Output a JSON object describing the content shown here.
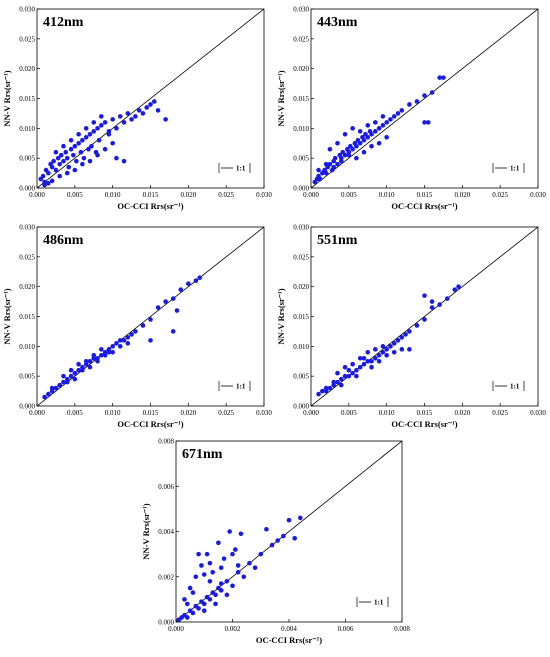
{
  "chart_data": [
    {
      "type": "scatter",
      "title": "412nm",
      "xlabel": "OC-CCI Rrs(sr⁻¹)",
      "ylabel": "NN-V Rrs(sr⁻¹)",
      "xlim": [
        0,
        0.03
      ],
      "ylim": [
        0,
        0.03
      ],
      "xticks": [
        "0.000",
        "0.005",
        "0.010",
        "0.015",
        "0.020",
        "0.025",
        "0.030"
      ],
      "yticks": [
        "0.000",
        "0.005",
        "0.010",
        "0.015",
        "0.020",
        "0.025",
        "0.030"
      ],
      "legend": "1:1",
      "marker_color": "#1a1ae6",
      "x": [
        0.0005,
        0.0008,
        0.001,
        0.0012,
        0.0015,
        0.0018,
        0.002,
        0.0022,
        0.0025,
        0.0028,
        0.003,
        0.0032,
        0.0035,
        0.0038,
        0.004,
        0.0042,
        0.0045,
        0.0048,
        0.005,
        0.0052,
        0.0055,
        0.0058,
        0.006,
        0.0062,
        0.0065,
        0.0068,
        0.007,
        0.0072,
        0.0075,
        0.0078,
        0.008,
        0.0082,
        0.0085,
        0.009,
        0.0095,
        0.01,
        0.0105,
        0.011,
        0.0115,
        0.012,
        0.0125,
        0.013,
        0.0135,
        0.014,
        0.0145,
        0.015,
        0.0155,
        0.016,
        0.017,
        0.001,
        0.0015,
        0.002,
        0.003,
        0.004,
        0.005,
        0.006,
        0.007,
        0.008,
        0.009,
        0.01,
        0.0025,
        0.0035,
        0.0045,
        0.0055,
        0.0065,
        0.0075,
        0.0085,
        0.0095,
        0.0105,
        0.0115
      ],
      "y": [
        0.0015,
        0.002,
        0.001,
        0.003,
        0.0025,
        0.004,
        0.0035,
        0.0045,
        0.003,
        0.005,
        0.004,
        0.0055,
        0.0045,
        0.006,
        0.005,
        0.0035,
        0.0065,
        0.0055,
        0.007,
        0.0045,
        0.0075,
        0.006,
        0.008,
        0.005,
        0.0085,
        0.0065,
        0.009,
        0.007,
        0.0095,
        0.006,
        0.01,
        0.008,
        0.0105,
        0.011,
        0.009,
        0.0115,
        0.01,
        0.012,
        0.011,
        0.0125,
        0.0115,
        0.012,
        0.013,
        0.0125,
        0.0135,
        0.014,
        0.0145,
        0.013,
        0.0115,
        0.0005,
        0.0008,
        0.0012,
        0.002,
        0.0025,
        0.003,
        0.004,
        0.0045,
        0.0055,
        0.0065,
        0.0075,
        0.006,
        0.007,
        0.008,
        0.009,
        0.01,
        0.011,
        0.012,
        0.0095,
        0.005,
        0.0045
      ]
    },
    {
      "type": "scatter",
      "title": "443nm",
      "xlabel": "OC-CCI Rrs(sr⁻¹)",
      "ylabel": "NN-V Rrs(sr⁻¹)",
      "xlim": [
        0,
        0.03
      ],
      "ylim": [
        0,
        0.03
      ],
      "xticks": [
        "0.000",
        "0.005",
        "0.010",
        "0.015",
        "0.020",
        "0.025",
        "0.030"
      ],
      "yticks": [
        "0.000",
        "0.005",
        "0.010",
        "0.015",
        "0.020",
        "0.025",
        "0.030"
      ],
      "legend": "1:1",
      "marker_color": "#1a1ae6",
      "x": [
        0.0005,
        0.0008,
        0.001,
        0.0012,
        0.0015,
        0.0018,
        0.002,
        0.0022,
        0.0025,
        0.0028,
        0.003,
        0.0032,
        0.0035,
        0.0038,
        0.004,
        0.0042,
        0.0045,
        0.0048,
        0.005,
        0.0052,
        0.0055,
        0.0058,
        0.006,
        0.0062,
        0.0065,
        0.0068,
        0.007,
        0.0072,
        0.0075,
        0.0078,
        0.008,
        0.0085,
        0.009,
        0.0095,
        0.01,
        0.0105,
        0.011,
        0.0115,
        0.012,
        0.013,
        0.014,
        0.015,
        0.016,
        0.017,
        0.0175,
        0.001,
        0.002,
        0.003,
        0.004,
        0.005,
        0.006,
        0.007,
        0.008,
        0.009,
        0.01,
        0.0025,
        0.0035,
        0.0045,
        0.0055,
        0.0065,
        0.0075,
        0.0085,
        0.0095,
        0.015,
        0.0155
      ],
      "y": [
        0.001,
        0.0015,
        0.002,
        0.0015,
        0.0025,
        0.003,
        0.0025,
        0.0035,
        0.004,
        0.003,
        0.0045,
        0.005,
        0.004,
        0.0055,
        0.005,
        0.006,
        0.0055,
        0.0065,
        0.006,
        0.007,
        0.0065,
        0.0075,
        0.007,
        0.008,
        0.0075,
        0.0085,
        0.008,
        0.009,
        0.0085,
        0.0095,
        0.009,
        0.0095,
        0.01,
        0.0105,
        0.011,
        0.0115,
        0.012,
        0.0125,
        0.013,
        0.014,
        0.0145,
        0.0155,
        0.016,
        0.0185,
        0.0185,
        0.003,
        0.004,
        0.0035,
        0.0045,
        0.0055,
        0.005,
        0.006,
        0.007,
        0.0075,
        0.0085,
        0.0065,
        0.0075,
        0.009,
        0.01,
        0.0095,
        0.0105,
        0.011,
        0.012,
        0.011,
        0.011
      ]
    },
    {
      "type": "scatter",
      "title": "486nm",
      "xlabel": "OC-CCI Rrs(sr⁻¹)",
      "ylabel": "NN-V Rrs(sr⁻¹)",
      "xlim": [
        0,
        0.03
      ],
      "ylim": [
        0,
        0.03
      ],
      "xticks": [
        "0.000",
        "0.005",
        "0.010",
        "0.015",
        "0.020",
        "0.025",
        "0.030"
      ],
      "yticks": [
        "0.000",
        "0.005",
        "0.010",
        "0.015",
        "0.020",
        "0.025",
        "0.030"
      ],
      "legend": "1:1",
      "marker_color": "#1a1ae6",
      "x": [
        0.001,
        0.0015,
        0.002,
        0.0025,
        0.003,
        0.0035,
        0.004,
        0.0045,
        0.005,
        0.0055,
        0.006,
        0.0065,
        0.007,
        0.0075,
        0.008,
        0.0085,
        0.009,
        0.0095,
        0.01,
        0.0105,
        0.011,
        0.0115,
        0.012,
        0.0125,
        0.013,
        0.014,
        0.015,
        0.016,
        0.017,
        0.018,
        0.019,
        0.02,
        0.021,
        0.0215,
        0.002,
        0.003,
        0.004,
        0.005,
        0.006,
        0.007,
        0.008,
        0.009,
        0.01,
        0.011,
        0.012,
        0.0035,
        0.0045,
        0.0055,
        0.0065,
        0.0075,
        0.0085,
        0.0095,
        0.015,
        0.018,
        0.0185
      ],
      "y": [
        0.0015,
        0.002,
        0.0025,
        0.003,
        0.0035,
        0.004,
        0.0045,
        0.005,
        0.0055,
        0.006,
        0.0065,
        0.007,
        0.0075,
        0.008,
        0.008,
        0.0085,
        0.009,
        0.0095,
        0.01,
        0.0105,
        0.011,
        0.011,
        0.0115,
        0.012,
        0.0125,
        0.0135,
        0.0145,
        0.0165,
        0.0175,
        0.018,
        0.0195,
        0.0205,
        0.021,
        0.0215,
        0.003,
        0.0035,
        0.004,
        0.0045,
        0.006,
        0.0065,
        0.0075,
        0.0085,
        0.009,
        0.01,
        0.0105,
        0.005,
        0.006,
        0.007,
        0.0075,
        0.0085,
        0.0095,
        0.009,
        0.011,
        0.0125,
        0.016
      ]
    },
    {
      "type": "scatter",
      "title": "551nm",
      "xlabel": "OC-CCI Rrs(sr⁻¹)",
      "ylabel": "NN-V Rrs(sr⁻¹)",
      "xlim": [
        0,
        0.03
      ],
      "ylim": [
        0,
        0.03
      ],
      "xticks": [
        "0.000",
        "0.005",
        "0.010",
        "0.015",
        "0.020",
        "0.025",
        "0.030"
      ],
      "yticks": [
        "0.000",
        "0.005",
        "0.010",
        "0.015",
        "0.020",
        "0.025",
        "0.030"
      ],
      "legend": "1:1",
      "marker_color": "#1a1ae6",
      "x": [
        0.001,
        0.0015,
        0.002,
        0.0025,
        0.003,
        0.0035,
        0.004,
        0.0045,
        0.005,
        0.0055,
        0.006,
        0.0065,
        0.007,
        0.0075,
        0.008,
        0.0085,
        0.009,
        0.0095,
        0.01,
        0.0105,
        0.011,
        0.0115,
        0.012,
        0.0125,
        0.013,
        0.014,
        0.015,
        0.016,
        0.017,
        0.018,
        0.019,
        0.0195,
        0.002,
        0.003,
        0.004,
        0.005,
        0.006,
        0.007,
        0.008,
        0.009,
        0.01,
        0.011,
        0.0035,
        0.0045,
        0.0055,
        0.0065,
        0.0075,
        0.0085,
        0.0095,
        0.015,
        0.016,
        0.012,
        0.013
      ],
      "y": [
        0.002,
        0.0025,
        0.003,
        0.003,
        0.0035,
        0.004,
        0.0045,
        0.005,
        0.005,
        0.0055,
        0.006,
        0.0065,
        0.007,
        0.0075,
        0.0075,
        0.008,
        0.0085,
        0.009,
        0.0095,
        0.01,
        0.0105,
        0.011,
        0.0115,
        0.012,
        0.0125,
        0.0135,
        0.0145,
        0.0165,
        0.017,
        0.018,
        0.0195,
        0.02,
        0.0025,
        0.004,
        0.0035,
        0.006,
        0.005,
        0.008,
        0.0065,
        0.0075,
        0.0085,
        0.009,
        0.0055,
        0.0065,
        0.007,
        0.008,
        0.009,
        0.0095,
        0.01,
        0.0185,
        0.0175,
        0.0095,
        0.0095
      ]
    },
    {
      "type": "scatter",
      "title": "671nm",
      "xlabel": "OC-CCI Rrs(sr⁻¹)",
      "ylabel": "NN-V Rrs(sr⁻¹)",
      "xlim": [
        0,
        0.008
      ],
      "ylim": [
        0,
        0.008
      ],
      "xticks": [
        "0.000",
        "0.002",
        "0.004",
        "0.006",
        "0.008"
      ],
      "yticks": [
        "0.000",
        "0.002",
        "0.004",
        "0.006",
        "0.008"
      ],
      "legend": "1:1",
      "marker_color": "#1a1ae6",
      "x": [
        0.0001,
        0.0002,
        0.0003,
        0.0004,
        0.0005,
        0.0006,
        0.0007,
        0.0008,
        0.0009,
        0.001,
        0.0011,
        0.0012,
        0.0013,
        0.0014,
        0.0015,
        0.0016,
        0.0018,
        0.002,
        0.0022,
        0.0024,
        0.0026,
        0.0028,
        0.003,
        0.0032,
        0.0034,
        0.0036,
        0.0038,
        0.004,
        0.0042,
        0.0044,
        0.0003,
        0.0005,
        0.0007,
        0.0009,
        0.0011,
        0.0013,
        0.0015,
        0.0017,
        0.0019,
        0.0021,
        0.0023,
        0.0008,
        0.001,
        0.0012,
        0.0014,
        0.0016,
        0.0018,
        0.002,
        0.0022,
        0.0004,
        0.0006,
        0.001,
        0.0012,
        0.0016
      ],
      "y": [
        0.0001,
        0.0002,
        0.0003,
        0.0002,
        0.0005,
        0.0004,
        0.0007,
        0.0006,
        0.0009,
        0.0008,
        0.0011,
        0.001,
        0.0013,
        0.0012,
        0.0015,
        0.0014,
        0.0018,
        0.0016,
        0.0022,
        0.002,
        0.0026,
        0.0024,
        0.003,
        0.0041,
        0.0034,
        0.0036,
        0.0038,
        0.0045,
        0.0037,
        0.0046,
        0.001,
        0.0015,
        0.002,
        0.0025,
        0.003,
        0.0022,
        0.0035,
        0.0028,
        0.004,
        0.0032,
        0.0039,
        0.003,
        0.0005,
        0.0018,
        0.0008,
        0.0024,
        0.0012,
        0.003,
        0.0025,
        0.0008,
        0.0013,
        0.0021,
        0.0026,
        0.0017
      ]
    }
  ]
}
